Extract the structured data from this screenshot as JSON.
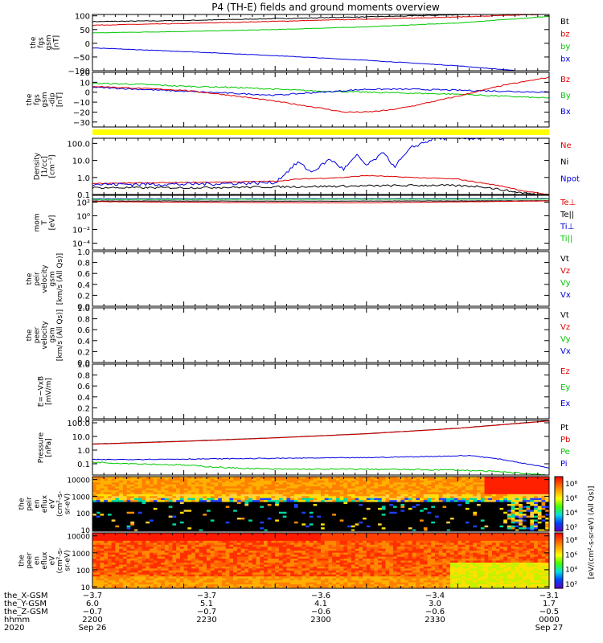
{
  "title": "P4 (TH-E) fields and ground moments overview",
  "colors": {
    "black": "#000000",
    "red": "#e00000",
    "green": "#00c800",
    "blue": "#0000e0",
    "yellow": "#ffff00"
  },
  "chart_data": [
    {
      "id": "bgsm",
      "type": "line",
      "ylabel": [
        "the",
        "fgs",
        "gsm",
        "[nT]"
      ],
      "ylim": [
        -100,
        105
      ],
      "yticks": [
        {
          "v": 100,
          "label": "100"
        },
        {
          "v": 50,
          "label": "50"
        },
        {
          "v": 0,
          "label": "0"
        },
        {
          "v": -50,
          "label": "−50"
        },
        {
          "v": -100,
          "label": "−100"
        }
      ],
      "legend": [
        {
          "name": "Bt",
          "color": "black"
        },
        {
          "name": "bz",
          "color": "red"
        },
        {
          "name": "by",
          "color": "green"
        },
        {
          "name": "bx",
          "color": "blue"
        }
      ],
      "series": [
        {
          "name": "Bt",
          "color": "black",
          "x": [
            0,
            20,
            40,
            60,
            80,
            100
          ],
          "y": [
            79,
            83,
            90,
            96,
            104,
            112
          ],
          "noise": 0.6
        },
        {
          "name": "bz",
          "color": "red",
          "x": [
            0,
            20,
            40,
            60,
            80,
            100
          ],
          "y": [
            66,
            72,
            80,
            88,
            96,
            106
          ],
          "noise": 0.5
        },
        {
          "name": "by",
          "color": "green",
          "x": [
            0,
            20,
            40,
            60,
            80,
            100
          ],
          "y": [
            38,
            43,
            50,
            60,
            74,
            98
          ],
          "noise": 0.4
        },
        {
          "name": "bx",
          "color": "blue",
          "x": [
            0,
            20,
            40,
            60,
            80,
            100
          ],
          "y": [
            -17,
            -30,
            -45,
            -62,
            -82,
            -110
          ],
          "noise": 0.4
        }
      ]
    },
    {
      "id": "bdetail",
      "type": "line",
      "ylabel": [
        "the",
        "fgs",
        "gsm",
        "-dip",
        "[nT]"
      ],
      "ylim": [
        -35,
        20
      ],
      "yticks": [
        {
          "v": 20,
          "label": "20"
        },
        {
          "v": 10,
          "label": "10"
        },
        {
          "v": 0,
          "label": "0"
        },
        {
          "v": -10,
          "label": "−10"
        },
        {
          "v": -20,
          "label": "−20"
        },
        {
          "v": -30,
          "label": "−30"
        }
      ],
      "legend": [
        {
          "name": "Bz",
          "color": "red"
        },
        {
          "name": "By",
          "color": "green"
        },
        {
          "name": "Bx",
          "color": "blue"
        }
      ],
      "series": [
        {
          "name": "By",
          "color": "green",
          "x": [
            0,
            10,
            20,
            30,
            40,
            50,
            60,
            70,
            80,
            90,
            100
          ],
          "y": [
            9,
            8,
            6,
            5,
            3,
            1,
            0,
            -1,
            -2,
            -4,
            -6
          ],
          "noise": 1.2
        },
        {
          "name": "Bx",
          "color": "blue",
          "x": [
            0,
            10,
            20,
            30,
            40,
            50,
            60,
            70,
            80,
            90,
            100
          ],
          "y": [
            5,
            3,
            1,
            -1,
            -3,
            0,
            3,
            3,
            2,
            1,
            0
          ],
          "noise": 1.2
        },
        {
          "name": "Bz",
          "color": "red",
          "x": [
            0,
            10,
            20,
            30,
            40,
            50,
            55,
            60,
            65,
            70,
            80,
            90,
            100
          ],
          "y": [
            6,
            4,
            2,
            -3,
            -9,
            -16,
            -20,
            -20,
            -18,
            -14,
            -4,
            7,
            15
          ],
          "noise": 1.0
        }
      ]
    },
    {
      "id": "density",
      "type": "line",
      "ylog": true,
      "ylabel": [
        "Density",
        "[1/cc]",
        "[cm⁻³]"
      ],
      "ylim": [
        0.1,
        200
      ],
      "yticks": [
        {
          "v": 100,
          "label": "100.0"
        },
        {
          "v": 10,
          "label": "10.0"
        },
        {
          "v": 1,
          "label": "1.0"
        },
        {
          "v": 0.1,
          "label": "0.1"
        }
      ],
      "legend": [
        {
          "name": "Ne",
          "color": "red"
        },
        {
          "name": "Ni",
          "color": "black"
        },
        {
          "name": "Npot",
          "color": "blue"
        }
      ],
      "series": [
        {
          "name": "Ne",
          "color": "red",
          "x": [
            0,
            20,
            40,
            45,
            55,
            60,
            70,
            80,
            90,
            95,
            100
          ],
          "y": [
            0.45,
            0.5,
            0.6,
            0.8,
            1.0,
            1.3,
            1.0,
            0.8,
            0.3,
            0.15,
            0.1
          ],
          "noise": 0.05
        },
        {
          "name": "Ni",
          "color": "black",
          "x": [
            0,
            20,
            40,
            60,
            75,
            85,
            92,
            100
          ],
          "y": [
            0.25,
            0.25,
            0.28,
            0.32,
            0.35,
            0.3,
            0.15,
            0.08
          ],
          "noise": 0.12
        },
        {
          "name": "Npot",
          "color": "blue",
          "x": [
            0,
            20,
            40,
            45,
            48,
            52,
            55,
            58,
            60,
            64,
            66,
            70,
            75,
            80,
            85,
            90
          ],
          "y": [
            0.4,
            0.4,
            0.5,
            8,
            2,
            12,
            3,
            20,
            5,
            30,
            4,
            60,
            200,
            200,
            200,
            200
          ],
          "noise": 0.2
        }
      ]
    },
    {
      "id": "temp",
      "type": "line",
      "ylog": true,
      "ylabel": [
        "mom",
        "T",
        "[eV]"
      ],
      "ylim": [
        1e-05,
        1000
      ],
      "yticks": [
        {
          "v": 100,
          "label": "10²"
        },
        {
          "v": 1,
          "label": "10⁰"
        },
        {
          "v": 0.01,
          "label": "10⁻²"
        },
        {
          "v": 0.0001,
          "label": "10⁻⁴"
        }
      ],
      "legend": [
        {
          "name": "Te⊥",
          "color": "red"
        },
        {
          "name": "Te||",
          "color": "black"
        },
        {
          "name": "Ti⊥",
          "color": "blue"
        },
        {
          "name": "Ti||",
          "color": "green"
        }
      ],
      "series": [
        {
          "name": "Ti⊥",
          "color": "blue",
          "x": [
            0,
            50,
            100
          ],
          "y": [
            300,
            320,
            330
          ],
          "noise": 0.03
        },
        {
          "name": "Ti||",
          "color": "green",
          "x": [
            0,
            50,
            100
          ],
          "y": [
            250,
            270,
            280
          ],
          "noise": 0.03
        },
        {
          "name": "Te||",
          "color": "black",
          "x": [
            0,
            50,
            100
          ],
          "y": [
            150,
            140,
            160
          ],
          "noise": 0.04
        },
        {
          "name": "Te⊥",
          "color": "red",
          "x": [
            0,
            30,
            60,
            80,
            100
          ],
          "y": [
            120,
            90,
            80,
            110,
            150
          ],
          "noise": 0.05
        }
      ]
    },
    {
      "id": "peirvel",
      "type": "empty",
      "ylabel": [
        "the",
        "peir",
        "velocity",
        "gsm",
        "[km/s (All Qs)]"
      ],
      "ylim": [
        0,
        1
      ],
      "yticks": [
        {
          "v": 1,
          "label": "1.0"
        },
        {
          "v": 0.8,
          "label": "0.8"
        },
        {
          "v": 0.6,
          "label": "0.6"
        },
        {
          "v": 0.4,
          "label": "0.4"
        },
        {
          "v": 0.2,
          "label": "0.2"
        },
        {
          "v": 0,
          "label": "0.0"
        }
      ],
      "legend": [
        {
          "name": "Vt",
          "color": "black"
        },
        {
          "name": "Vz",
          "color": "red"
        },
        {
          "name": "Vy",
          "color": "green"
        },
        {
          "name": "Vx",
          "color": "blue"
        }
      ],
      "series": []
    },
    {
      "id": "peervel",
      "type": "empty",
      "ylabel": [
        "the",
        "peer",
        "velocity",
        "gsm",
        "[km/s (All Qs)]"
      ],
      "ylim": [
        0,
        1
      ],
      "yticks": [
        {
          "v": 1,
          "label": "1.0"
        },
        {
          "v": 0.8,
          "label": "0.8"
        },
        {
          "v": 0.6,
          "label": "0.6"
        },
        {
          "v": 0.4,
          "label": "0.4"
        },
        {
          "v": 0.2,
          "label": "0.2"
        },
        {
          "v": 0,
          "label": "0.0"
        }
      ],
      "legend": [
        {
          "name": "Vt",
          "color": "black"
        },
        {
          "name": "Vz",
          "color": "red"
        },
        {
          "name": "Vy",
          "color": "green"
        },
        {
          "name": "Vx",
          "color": "blue"
        }
      ],
      "series": []
    },
    {
      "id": "efield",
      "type": "empty",
      "ylabel": [
        "E=−VxB",
        "[mV/m]"
      ],
      "ylim": [
        0,
        1
      ],
      "yticks": [
        {
          "v": 1,
          "label": "1.0"
        },
        {
          "v": 0.8,
          "label": "0.8"
        },
        {
          "v": 0.6,
          "label": "0.6"
        },
        {
          "v": 0.4,
          "label": "0.4"
        },
        {
          "v": 0.2,
          "label": "0.2"
        },
        {
          "v": 0,
          "label": "0.0"
        }
      ],
      "legend": [
        {
          "name": "Ez",
          "color": "red"
        },
        {
          "name": "Ey",
          "color": "green"
        },
        {
          "name": "Ex",
          "color": "blue"
        }
      ],
      "series": []
    },
    {
      "id": "pressure",
      "type": "line",
      "ylog": true,
      "ylabel": [
        "Pressure",
        "[nPa]"
      ],
      "ylim": [
        0.015,
        150
      ],
      "yticks": [
        {
          "v": 100,
          "label": "100.0"
        },
        {
          "v": 10,
          "label": "10.0"
        },
        {
          "v": 1,
          "label": "1.0"
        },
        {
          "v": 0.1,
          "label": "0.1"
        }
      ],
      "legend": [
        {
          "name": "Pt",
          "color": "black"
        },
        {
          "name": "Pb",
          "color": "red"
        },
        {
          "name": "Pe",
          "color": "green"
        },
        {
          "name": "Pi",
          "color": "blue"
        }
      ],
      "series": [
        {
          "name": "Pt",
          "color": "black",
          "x": [
            0,
            20,
            40,
            60,
            80,
            100
          ],
          "y": [
            2.8,
            4.5,
            8,
            16,
            40,
            140
          ],
          "noise": 0.01
        },
        {
          "name": "Pb",
          "color": "red",
          "x": [
            0,
            20,
            40,
            60,
            80,
            100
          ],
          "y": [
            2.7,
            4.3,
            7.8,
            15.5,
            39,
            135
          ],
          "noise": 0.01
        },
        {
          "name": "Pi",
          "color": "blue",
          "x": [
            0,
            20,
            40,
            60,
            75,
            83,
            90,
            100
          ],
          "y": [
            0.2,
            0.22,
            0.25,
            0.28,
            0.35,
            0.4,
            0.2,
            0.05
          ],
          "noise": 0.06
        },
        {
          "name": "Pe",
          "color": "green",
          "x": [
            0,
            10,
            20,
            30,
            40,
            60,
            80,
            90,
            100
          ],
          "y": [
            0.13,
            0.1,
            0.08,
            0.05,
            0.04,
            0.04,
            0.035,
            0.025,
            0.015
          ],
          "noise": 0.1
        }
      ]
    },
    {
      "id": "peirspec",
      "type": "heatmap",
      "ylog": true,
      "ylabel": [
        "the",
        "peir",
        "en",
        "eflux",
        "eV",
        "(cm²-s-",
        "sr-eV)"
      ],
      "ylim": [
        8,
        15000
      ],
      "yticks": [
        {
          "v": 10000,
          "label": "10000"
        },
        {
          "v": 1000,
          "label": "1000"
        },
        {
          "v": 100,
          "label": "100"
        },
        {
          "v": 10,
          "label": "10"
        }
      ],
      "colorbar": {
        "label": "[eV/(cm²-s-sr-eV) (All Qs)]",
        "ticks": [
          "10⁸",
          "10⁶",
          "10⁴",
          "10²"
        ]
      }
    },
    {
      "id": "peerspec",
      "type": "heatmap",
      "ylog": true,
      "ylabel": [
        "the",
        "peer",
        "en",
        "eflux",
        "eV",
        "(cm²-s-",
        "sr-eV)"
      ],
      "ylim": [
        8,
        15000
      ],
      "yticks": [
        {
          "v": 10000,
          "label": "10000"
        },
        {
          "v": 1000,
          "label": "1000"
        },
        {
          "v": 100,
          "label": "100"
        },
        {
          "v": 10,
          "label": "10"
        }
      ],
      "colorbar": {
        "label": "[eV/(cm²-s-sr-eV) (All Qs)]",
        "ticks": [
          "10⁸",
          "10⁶",
          "10⁴",
          "10²"
        ]
      }
    }
  ],
  "ephemeris": {
    "labels": [
      "the_X-GSM",
      "the_Y-GSM",
      "the_Z-GSM",
      "hhmm",
      "2020"
    ],
    "columns": [
      [
        "−3.7",
        "6.0",
        "−0.7",
        "2200",
        "Sep 26"
      ],
      [
        "−3.7",
        "5.1",
        "−0.7",
        "2230",
        ""
      ],
      [
        "−3.6",
        "4.1",
        "−0.6",
        "2300",
        ""
      ],
      [
        "−3.4",
        "3.0",
        "−0.6",
        "2330",
        ""
      ],
      [
        "−3.1",
        "1.7",
        "−0.5",
        "0000",
        "Sep 27"
      ]
    ]
  }
}
